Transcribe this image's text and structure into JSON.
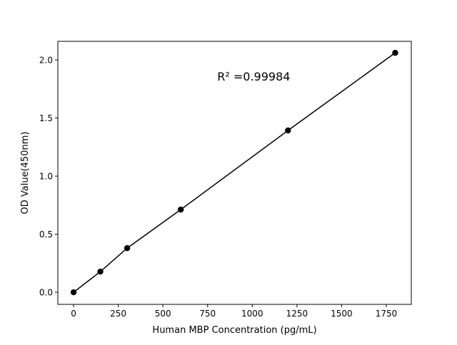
{
  "chart_data": {
    "type": "line",
    "title": "",
    "xlabel": "Human MBP Concentration (pg/mL)",
    "ylabel": "OD Value(450nm)",
    "xlim": [
      -88,
      1890
    ],
    "ylim": [
      -0.104,
      2.16
    ],
    "xticks": [
      0,
      250,
      500,
      750,
      1000,
      1250,
      1500,
      1750
    ],
    "xtick_labels": [
      "0",
      "250",
      "500",
      "750",
      "1000",
      "1250",
      "1500",
      "1750"
    ],
    "yticks": [
      0.0,
      0.5,
      1.0,
      1.5,
      2.0
    ],
    "ytick_labels": [
      "0.0",
      "0.5",
      "1.0",
      "1.5",
      "2.0"
    ],
    "grid": false,
    "series": [
      {
        "x": [
          0,
          150,
          300,
          600,
          1200,
          1800
        ],
        "y": [
          0.0,
          0.178,
          0.38,
          0.712,
          1.393,
          2.061
        ],
        "color": "#000000",
        "marker": "circle"
      }
    ],
    "annotations": [
      {
        "text": "R² =0.99984",
        "x": 900,
        "y": 1.86
      }
    ]
  }
}
